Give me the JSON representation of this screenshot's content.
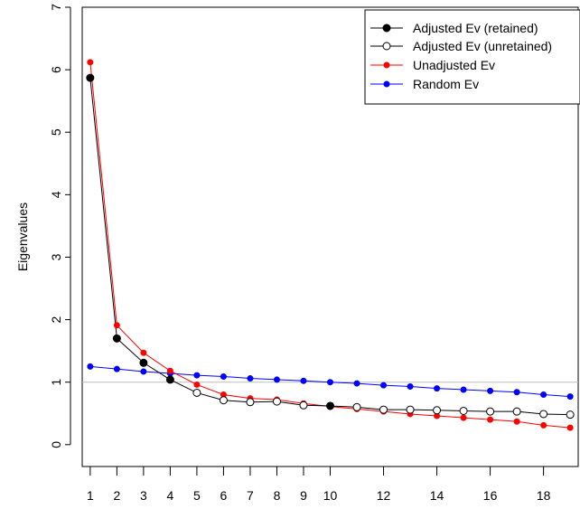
{
  "chart_data": {
    "type": "line",
    "title": "",
    "xlabel": "",
    "ylabel": "Eigenvalues",
    "xlim": [
      0.7,
      19.3
    ],
    "ylim": [
      -0.35,
      7
    ],
    "x_ticks": [
      1,
      2,
      3,
      4,
      5,
      6,
      7,
      8,
      9,
      10,
      12,
      14,
      16,
      18
    ],
    "y_ticks": [
      0,
      1,
      2,
      3,
      4,
      5,
      6,
      7
    ],
    "reference_line": 1,
    "grid": false,
    "legend_position": "top-right",
    "x": [
      1,
      2,
      3,
      4,
      5,
      6,
      7,
      8,
      9,
      10,
      11,
      12,
      13,
      14,
      15,
      16,
      17,
      18,
      19
    ],
    "series": [
      {
        "name": "Random Ev",
        "color": "#0000ff",
        "marker": "filled-dot",
        "values": [
          1.25,
          1.21,
          1.17,
          1.14,
          1.11,
          1.09,
          1.06,
          1.04,
          1.02,
          1.0,
          0.98,
          0.95,
          0.93,
          0.9,
          0.88,
          0.86,
          0.84,
          0.8,
          0.77
        ]
      },
      {
        "name": "Unadjusted Ev",
        "color": "#ff0000",
        "marker": "filled-dot",
        "values": [
          6.12,
          1.91,
          1.47,
          1.18,
          0.96,
          0.8,
          0.74,
          0.72,
          0.66,
          0.61,
          0.57,
          0.53,
          0.49,
          0.46,
          0.43,
          0.4,
          0.37,
          0.31,
          0.27
        ]
      },
      {
        "name": "Adjusted Ev (retained)",
        "color": "#000000",
        "marker": "filled-circle",
        "values": [
          5.87,
          1.7,
          1.31,
          1.04,
          null,
          null,
          null,
          null,
          null,
          0.62,
          null,
          null,
          null,
          null,
          null,
          null,
          null,
          null,
          null
        ]
      },
      {
        "name": "Adjusted Ev (unretained)",
        "color": "#000000",
        "marker": "open-circle",
        "values": [
          null,
          null,
          null,
          null,
          0.83,
          0.71,
          0.68,
          0.69,
          0.63,
          null,
          0.6,
          0.56,
          0.56,
          0.55,
          0.54,
          0.53,
          0.53,
          0.49,
          0.48
        ]
      }
    ],
    "adjusted_line_values": [
      5.87,
      1.7,
      1.31,
      1.04,
      0.83,
      0.71,
      0.68,
      0.69,
      0.63,
      0.62,
      0.6,
      0.56,
      0.56,
      0.55,
      0.54,
      0.53,
      0.53,
      0.49,
      0.48
    ],
    "legend": [
      {
        "label": "Adjusted Ev (retained)",
        "color": "#000000",
        "marker": "filled-circle"
      },
      {
        "label": "Adjusted Ev (unretained)",
        "color": "#000000",
        "marker": "open-circle"
      },
      {
        "label": "Unadjusted Ev",
        "color": "#ff0000",
        "marker": "filled-dot"
      },
      {
        "label": "Random Ev",
        "color": "#0000ff",
        "marker": "filled-dot"
      }
    ]
  }
}
